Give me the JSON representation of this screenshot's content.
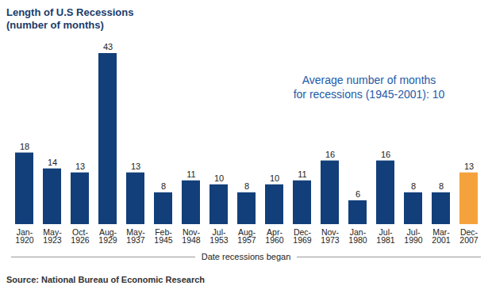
{
  "chart_data": {
    "type": "bar",
    "title": "Length of U.S Recessions",
    "subtitle": "(number of months)",
    "x_label": "Date recessions began",
    "annotation": [
      "Average number of months",
      "for recessions (1945-2001): 10"
    ],
    "source": "Source: National Bureau of Economic Research",
    "categories": [
      "Jan-1920",
      "May-1923",
      "Oct-1926",
      "Aug-1929",
      "May-1937",
      "Feb-1945",
      "Nov-1948",
      "Jul-1953",
      "Aug-1957",
      "Apr-1960",
      "Dec-1969",
      "Nov-1973",
      "Jan-1980",
      "Jul-1981",
      "Jul-1990",
      "Mar-2001",
      "Dec-2007"
    ],
    "values": [
      18,
      14,
      13,
      43,
      13,
      8,
      11,
      10,
      8,
      10,
      11,
      16,
      6,
      16,
      8,
      8,
      13
    ],
    "colors": [
      "#123f7a",
      "#123f7a",
      "#123f7a",
      "#123f7a",
      "#123f7a",
      "#123f7a",
      "#123f7a",
      "#123f7a",
      "#123f7a",
      "#123f7a",
      "#123f7a",
      "#123f7a",
      "#123f7a",
      "#123f7a",
      "#123f7a",
      "#123f7a",
      "#f5a23c"
    ],
    "ylim": [
      0,
      43
    ],
    "data_labels": true,
    "tick_labels": "x",
    "grid": false
  }
}
